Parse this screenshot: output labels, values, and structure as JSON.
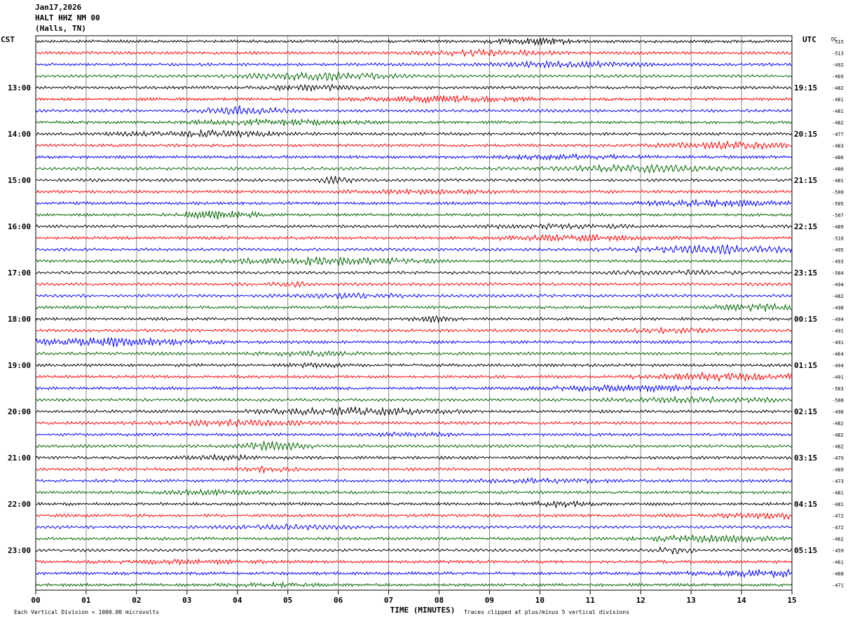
{
  "header": {
    "date": "Jan17,2026",
    "station": "HALT HHZ NM 00",
    "location": "(Halls, TN)"
  },
  "chart_data": {
    "type": "line",
    "left_tz_label": "CST",
    "right_tz_label": "UTC",
    "dc_label": "DC",
    "xlabel": "TIME (MINUTES)",
    "xlim": [
      0,
      15
    ],
    "x_ticks": [
      "00",
      "01",
      "02",
      "03",
      "04",
      "05",
      "06",
      "07",
      "08",
      "09",
      "10",
      "11",
      "12",
      "13",
      "14",
      "15"
    ],
    "left_hour_labels": [
      "13:00",
      "14:00",
      "15:00",
      "16:00",
      "17:00",
      "18:00",
      "19:00",
      "20:00",
      "21:00",
      "22:00",
      "23:00"
    ],
    "right_hour_labels": [
      "19:15",
      "20:15",
      "21:15",
      "22:15",
      "23:15",
      "00:15",
      "01:15",
      "02:15",
      "03:15",
      "04:15",
      "05:15"
    ],
    "first_hour_label_row": 4,
    "trace_colors": [
      "#000000",
      "#ff0000",
      "#0000ff",
      "#006600"
    ],
    "dc_offsets": [
      "-515",
      "-513",
      "-492",
      "-469",
      "-482",
      "-481",
      "-481",
      "-482",
      "-477",
      "-483",
      "-486",
      "-486",
      "-481",
      "-500",
      "-505",
      "-507",
      "-489",
      "-510",
      "-495",
      "-493",
      "-504",
      "-494",
      "-482",
      "-498",
      "-494",
      "-491",
      "-491",
      "-464",
      "-494",
      "-491",
      "-503",
      "-508",
      "-498",
      "-482",
      "-482",
      "-482",
      "-479",
      "-489",
      "-473",
      "-481",
      "-481",
      "-472",
      "-472",
      "-462",
      "-459",
      "-461",
      "-468",
      "-471"
    ],
    "footer_left": "Each Vertical Division = 1000.00 microvolts",
    "footer_right": "Traces clipped at plus/minus 5 vertical divisions",
    "grid": true
  }
}
